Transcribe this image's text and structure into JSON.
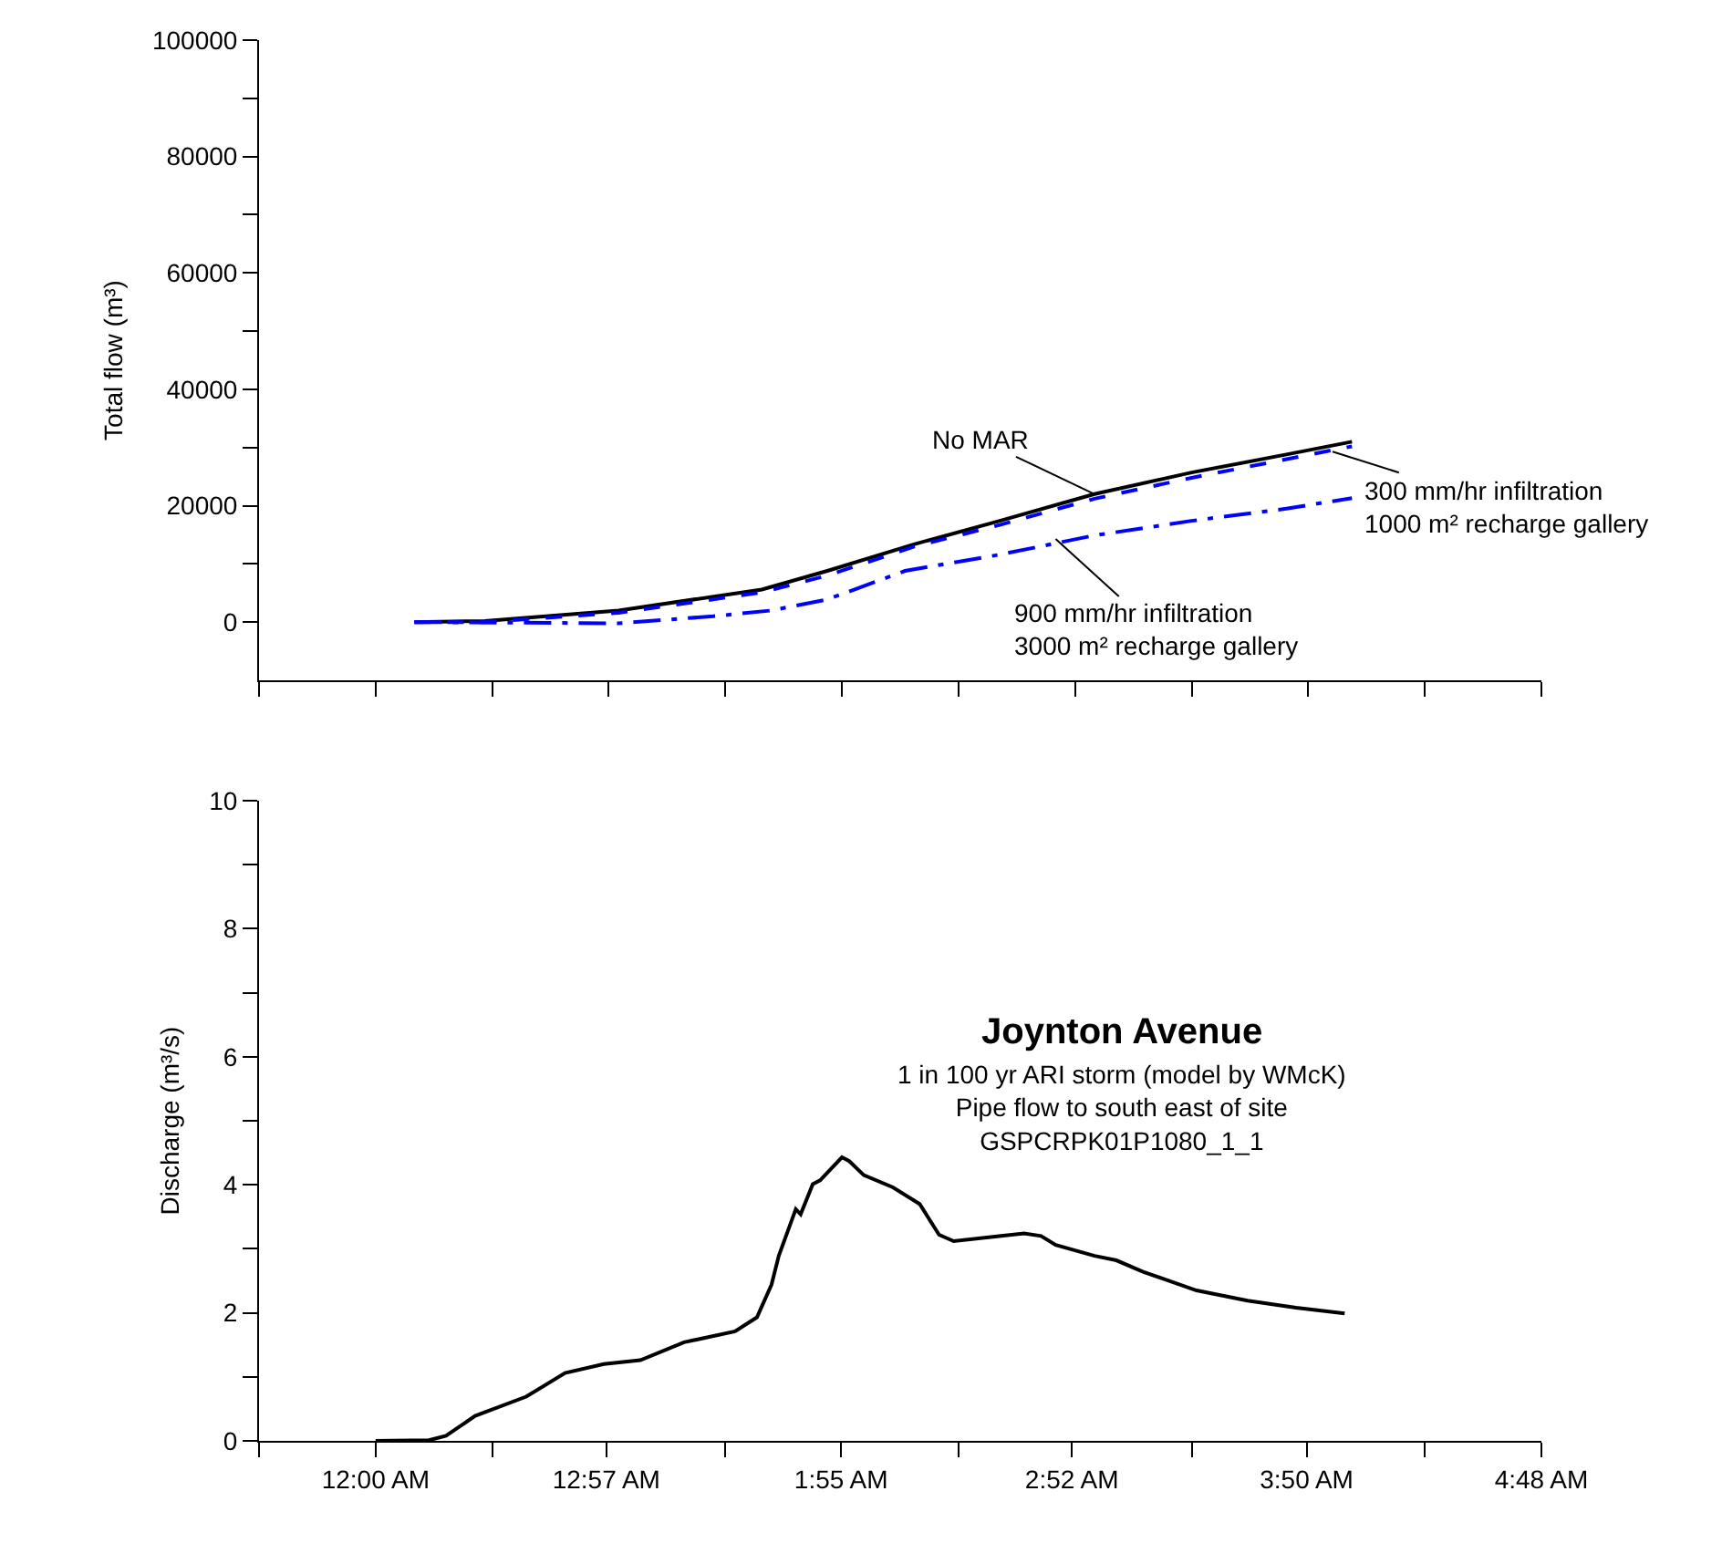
{
  "chart_data": [
    {
      "type": "line",
      "ylabel": "Total flow (m³)",
      "tick_labels": "y",
      "xlim": [
        -0.48,
        4.8
      ],
      "xticks": [
        {
          "value": -0.48,
          "label": null
        },
        {
          "value": 0,
          "label": null
        },
        {
          "value": 0.48,
          "label": null
        },
        {
          "value": 0.96,
          "label": null
        },
        {
          "value": 1.44,
          "label": null
        },
        {
          "value": 1.92,
          "label": null
        },
        {
          "value": 2.4,
          "label": null
        },
        {
          "value": 2.88,
          "label": null
        },
        {
          "value": 3.36,
          "label": null
        },
        {
          "value": 3.84,
          "label": null
        },
        {
          "value": 4.32,
          "label": null
        },
        {
          "value": 4.8,
          "label": null
        }
      ],
      "ylim": [
        -10000,
        100000
      ],
      "yticks": [
        0,
        {
          "value": 10000,
          "label": null
        },
        20000,
        {
          "value": 30000,
          "label": null
        },
        40000,
        {
          "value": 50000,
          "label": null
        },
        60000,
        {
          "value": 70000,
          "label": null
        },
        80000,
        {
          "value": 90000,
          "label": null
        },
        100000
      ],
      "series": [
        {
          "color": "#000000",
          "line_style": "solid",
          "x": [
            0.16,
            0.45,
            1.0,
            1.59,
            1.86,
            2.22,
            2.57,
            2.96,
            3.36,
            3.75,
            4.02
          ],
          "values": [
            0,
            200,
            2000,
            5600,
            8800,
            13400,
            17400,
            22000,
            25700,
            28800,
            31000
          ]
        },
        {
          "color": "#0000ff",
          "line_style": "dashed",
          "x": [
            0.16,
            0.45,
            1.0,
            1.59,
            1.86,
            2.22,
            2.57,
            2.96,
            3.36,
            4.02
          ],
          "values": [
            0,
            0,
            1600,
            5100,
            8000,
            13000,
            16700,
            21200,
            24800,
            30200
          ]
        },
        {
          "color": "#0000ff",
          "line_style": "dashdot",
          "x": [
            0.16,
            1.0,
            1.39,
            1.63,
            1.86,
            2.18,
            2.57,
            2.96,
            3.36,
            3.75,
            4.02
          ],
          "values": [
            0,
            -200,
            1000,
            2000,
            3900,
            8800,
            11600,
            14900,
            17400,
            19500,
            21300
          ]
        }
      ],
      "annotations": [
        {
          "text": "No MAR",
          "x": 2.96,
          "y": 22000
        },
        {
          "text": "300 mm/hr infiltration\n1000 m² recharge gallery",
          "x": 3.94,
          "y": 29300
        },
        {
          "text": "900 mm/hr infiltration\n3000 m² recharge gallery",
          "x": 2.8,
          "y": 14300
        }
      ]
    },
    {
      "type": "line",
      "title": "Joynton Avenue",
      "subtitle": "1 in 100 yr ARI storm (model by WMcK)\nPipe flow to south east of site\nGSPCRPK01P1080_1_1",
      "ylabel": "Discharge (m³/s)",
      "xlim": [
        -0.48,
        4.8
      ],
      "xticks": [
        {
          "value": -0.48,
          "label": null
        },
        {
          "value": 0,
          "label": "12:00 AM"
        },
        {
          "value": 0.48,
          "label": null
        },
        {
          "value": 0.95,
          "label": "12:57 AM"
        },
        {
          "value": 1.44,
          "label": null
        },
        {
          "value": 1.9167,
          "label": "1:55 AM"
        },
        {
          "value": 2.4,
          "label": null
        },
        {
          "value": 2.8667,
          "label": "2:52 AM"
        },
        {
          "value": 3.36,
          "label": null
        },
        {
          "value": 3.8333,
          "label": "3:50 AM"
        },
        {
          "value": 4.32,
          "label": null
        },
        {
          "value": 4.8,
          "label": "4:48 AM"
        }
      ],
      "ylim": [
        0,
        10
      ],
      "yticks": [
        0,
        {
          "value": 1,
          "label": null
        },
        2,
        {
          "value": 3,
          "label": null
        },
        4,
        {
          "value": 5,
          "label": null
        },
        6,
        {
          "value": 7,
          "label": null
        },
        8,
        {
          "value": 9,
          "label": null
        },
        10
      ],
      "series": [
        {
          "color": "#000000",
          "line_style": "solid",
          "x": [
            0,
            0.22,
            0.29,
            0.41,
            0.62,
            0.78,
            0.94,
            1.09,
            1.27,
            1.48,
            1.57,
            1.63,
            1.66,
            1.73,
            1.75,
            1.8,
            1.83,
            1.92,
            1.95,
            2.01,
            2.13,
            2.24,
            2.32,
            2.38,
            2.55,
            2.67,
            2.74,
            2.8,
            2.96,
            3.05,
            3.16,
            3.38,
            3.59,
            3.79,
            3.99
          ],
          "values": [
            0,
            0.01,
            0.08,
            0.39,
            0.69,
            1.06,
            1.2,
            1.26,
            1.54,
            1.71,
            1.93,
            2.44,
            2.89,
            3.62,
            3.54,
            4.01,
            4.07,
            4.43,
            4.37,
            4.15,
            3.96,
            3.7,
            3.22,
            3.12,
            3.19,
            3.24,
            3.2,
            3.06,
            2.89,
            2.82,
            2.64,
            2.35,
            2.19,
            2.08,
            1.99
          ]
        }
      ]
    }
  ]
}
